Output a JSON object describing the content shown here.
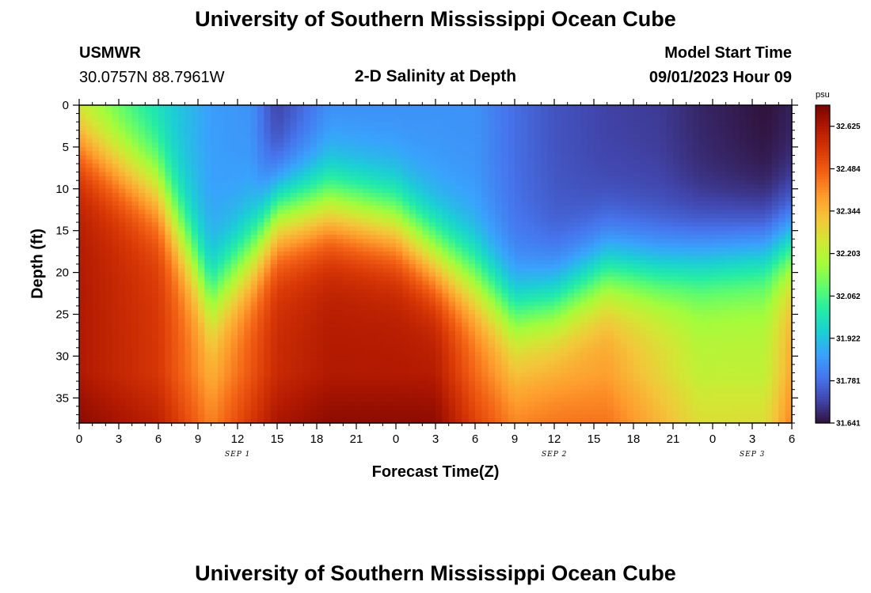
{
  "header": {
    "title_top": "University of Southern Mississippi Ocean Cube",
    "station_name": "USMWR",
    "station_coords": "30.0757N  88.7961W",
    "plot_title": "2-D Salinity at Depth",
    "model_start_label": "Model Start Time",
    "model_start_value": "09/01/2023 Hour 09",
    "title_bottom": "University of Southern Mississippi Ocean Cube"
  },
  "chart_data": {
    "type": "heatmap",
    "title": "2-D Salinity at Depth",
    "xlabel": "Forecast Time(Z)",
    "ylabel": "Depth (ft)",
    "x_tick_labels": [
      "0",
      "3",
      "6",
      "9",
      "12",
      "15",
      "18",
      "21",
      "0",
      "3",
      "6",
      "9",
      "12",
      "15",
      "18",
      "21",
      "0",
      "3",
      "6"
    ],
    "x_date_labels": [
      "SEP 1",
      "SEP 2",
      "SEP 3"
    ],
    "y_ticks": [
      0,
      5,
      10,
      15,
      20,
      25,
      30,
      35
    ],
    "y_range": [
      0,
      38
    ],
    "y_inverted": true,
    "colorbar": {
      "unit": "psu",
      "range": [
        31.641,
        32.695
      ],
      "tick_labels": [
        "32.625",
        "32.484",
        "32.344",
        "32.203",
        "32.062",
        "31.922",
        "31.781",
        "31.641"
      ],
      "colors": [
        "#30123b",
        "#4145ab",
        "#4675ed",
        "#39a2fc",
        "#1bcfd4",
        "#24eca6",
        "#61fc6c",
        "#a4fc3b",
        "#d1e834",
        "#f3c63a",
        "#fe9b2d",
        "#f36315",
        "#d93806",
        "#b11901",
        "#7a0402"
      ]
    },
    "z_description_by_hour": {
      "hours": [
        0,
        6,
        10,
        13,
        15,
        19,
        24,
        27,
        30,
        33,
        36,
        40,
        44,
        47,
        52,
        54
      ],
      "surface_psu": [
        32.14,
        31.96,
        31.86,
        31.84,
        31.7,
        31.82,
        31.83,
        31.84,
        31.84,
        31.78,
        31.74,
        31.71,
        31.7,
        31.67,
        31.64,
        31.66
      ],
      "halocline_depth_ft": [
        4,
        10,
        23,
        18,
        13,
        12,
        14,
        18,
        21,
        25,
        24,
        20,
        20,
        19,
        18,
        17
      ],
      "deep_psu": [
        32.62,
        32.55,
        32.38,
        32.5,
        32.58,
        32.62,
        32.62,
        32.62,
        32.48,
        32.38,
        32.4,
        32.4,
        32.3,
        32.22,
        32.22,
        32.38
      ]
    }
  }
}
